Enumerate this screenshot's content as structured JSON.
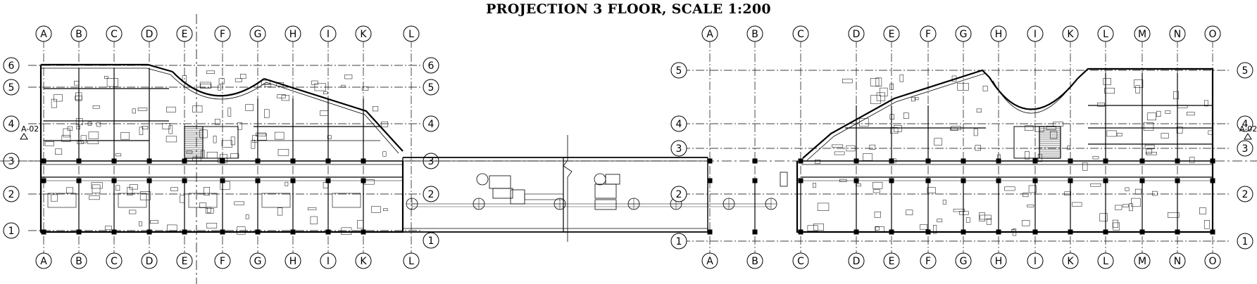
{
  "title": "PROJECTION 3 FLOOR, SCALE 1:200",
  "colors": {
    "line": "#000000",
    "background": "#ffffff"
  },
  "left_building": {
    "col_labels": [
      "A",
      "B",
      "C",
      "D",
      "E",
      "F",
      "G",
      "H",
      "I",
      "K",
      "L"
    ],
    "row_labels": [
      "6",
      "5",
      "4",
      "3",
      "2",
      "1"
    ],
    "section_mark": "A-02"
  },
  "right_building": {
    "col_labels": [
      "A",
      "B",
      "C",
      "D",
      "E",
      "F",
      "G",
      "H",
      "I",
      "K",
      "L",
      "M",
      "N",
      "O"
    ],
    "row_labels": [
      "5",
      "4",
      "3",
      "2",
      "1"
    ],
    "section_mark": "A-02"
  }
}
